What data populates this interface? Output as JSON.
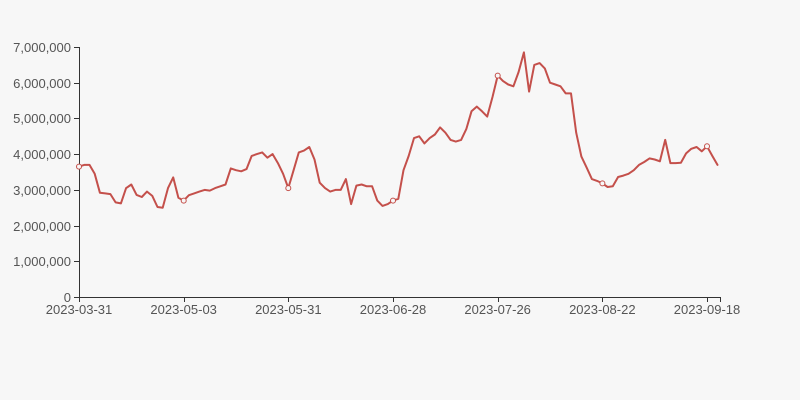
{
  "chart_data": {
    "type": "line",
    "title": "",
    "xlabel": "",
    "ylabel": "",
    "background_color": "#f7f7f7",
    "line_color": "#c4504b",
    "axis_line_color": "#333333",
    "label_color": "#555555",
    "marker_fill": "#f7f7f7",
    "ylim": [
      0,
      7000000
    ],
    "y_tick_values": [
      0,
      1000000,
      2000000,
      3000000,
      4000000,
      5000000,
      6000000,
      7000000
    ],
    "y_tick_labels": [
      "0",
      "1,000,000",
      "2,000,000",
      "3,000,000",
      "4,000,000",
      "5,000,000",
      "6,000,000",
      "7,000,000"
    ],
    "x_tick_labels": [
      "2023-03-31",
      "2023-05-03",
      "2023-05-31",
      "2023-06-28",
      "2023-07-26",
      "2023-08-22",
      "2023-09-18"
    ],
    "marker_indices": [
      0,
      20,
      40,
      60,
      80,
      100,
      120
    ],
    "legend_position": "none",
    "grid": false,
    "values": [
      3650000,
      3700000,
      3700000,
      3450000,
      2920000,
      2900000,
      2880000,
      2650000,
      2620000,
      3050000,
      3150000,
      2860000,
      2800000,
      2950000,
      2830000,
      2520000,
      2500000,
      3050000,
      3350000,
      2780000,
      2700000,
      2850000,
      2900000,
      2950000,
      3000000,
      2980000,
      3050000,
      3100000,
      3150000,
      3600000,
      3550000,
      3520000,
      3580000,
      3950000,
      4000000,
      4050000,
      3900000,
      4000000,
      3750000,
      3450000,
      3050000,
      3550000,
      4050000,
      4100000,
      4200000,
      3850000,
      3200000,
      3050000,
      2950000,
      3000000,
      3000000,
      3300000,
      2600000,
      3120000,
      3150000,
      3100000,
      3100000,
      2700000,
      2550000,
      2600000,
      2700000,
      2750000,
      3550000,
      3950000,
      4450000,
      4500000,
      4300000,
      4450000,
      4550000,
      4750000,
      4600000,
      4400000,
      4350000,
      4400000,
      4700000,
      5200000,
      5330000,
      5200000,
      5050000,
      5600000,
      6200000,
      6050000,
      5950000,
      5900000,
      6300000,
      6850000,
      5750000,
      6500000,
      6550000,
      6400000,
      6000000,
      5950000,
      5900000,
      5700000,
      5700000,
      4600000,
      3930000,
      3620000,
      3300000,
      3250000,
      3180000,
      3080000,
      3100000,
      3360000,
      3400000,
      3450000,
      3550000,
      3700000,
      3780000,
      3880000,
      3850000,
      3800000,
      4400000,
      3750000,
      3750000,
      3760000,
      4020000,
      4150000,
      4200000,
      4080000,
      4220000,
      3950000,
      3700000
    ]
  }
}
